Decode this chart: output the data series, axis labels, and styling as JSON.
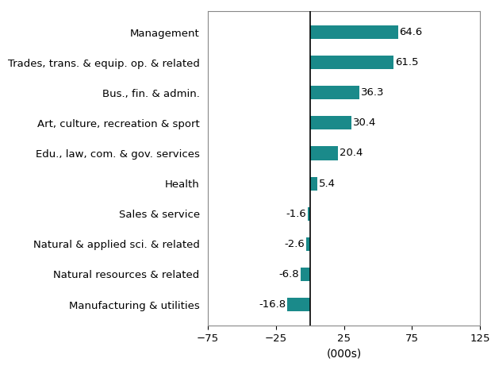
{
  "categories": [
    "Manufacturing & utilities",
    "Natural resources & related",
    "Natural & applied sci. & related",
    "Sales & service",
    "Health",
    "Edu., law, com. & gov. services",
    "Art, culture, recreation & sport",
    "Bus., fin. & admin.",
    "Trades, trans. & equip. op. & related",
    "Management"
  ],
  "values": [
    -16.8,
    -6.8,
    -2.6,
    -1.6,
    5.4,
    20.4,
    30.4,
    36.3,
    61.5,
    64.6
  ],
  "bar_color": "#1a8a8a",
  "xlabel": "(000s)",
  "xlim": [
    -75,
    125
  ],
  "xticks": [
    -75,
    -25,
    25,
    75,
    125
  ],
  "background_color": "#ffffff",
  "label_fontsize": 9.5,
  "xlabel_fontsize": 10,
  "bar_height": 0.45
}
